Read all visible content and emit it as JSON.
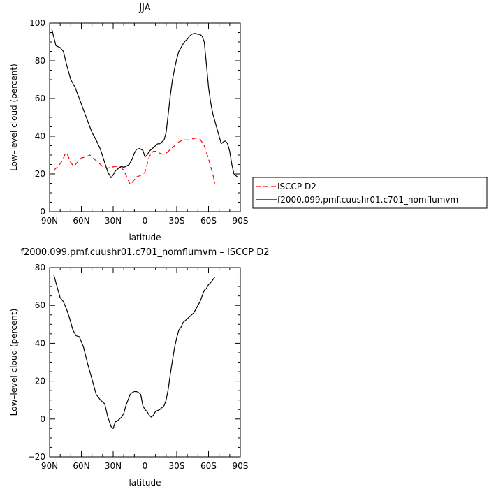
{
  "figure": {
    "legend_entries": [
      "ISCCP D2",
      "f2000.099.pmf.cuushr01.c701_nomflumvm"
    ]
  },
  "chart_data": [
    {
      "type": "line",
      "title": "JJA",
      "xlabel": "latitude",
      "ylabel": "Low–level cloud (percent)",
      "xlim": [
        90,
        -90
      ],
      "ylim": [
        0,
        100
      ],
      "xticks": [
        90,
        60,
        30,
        0,
        -30,
        -60,
        -90
      ],
      "xtick_labels": [
        "90N",
        "60N",
        "30N",
        "0",
        "30S",
        "60S",
        "90S"
      ],
      "yticks": [
        0,
        20,
        40,
        60,
        80,
        100
      ],
      "ytick_labels": [
        "0",
        "20",
        "40",
        "60",
        "80",
        "100"
      ],
      "legend_position": "right",
      "series": [
        {
          "name": "ISCCP D2",
          "color": "#ff0000",
          "dash": true,
          "x": [
            86,
            82,
            78,
            75,
            73,
            70,
            67,
            64,
            60,
            56,
            52,
            48,
            44,
            40,
            36,
            32,
            28,
            24,
            20,
            16,
            14,
            12,
            10,
            8,
            5,
            2,
            0,
            -2,
            -4,
            -6,
            -8,
            -10,
            -12,
            -14,
            -16,
            -18,
            -20,
            -24,
            -28,
            -32,
            -36,
            -40,
            -44,
            -48,
            -52,
            -56,
            -60,
            -64,
            -66
          ],
          "y": [
            22,
            24,
            27,
            31,
            30,
            26,
            24,
            26,
            28.5,
            29,
            30,
            28,
            26,
            24,
            23,
            23.5,
            24,
            24,
            22,
            17,
            14.5,
            15.5,
            17,
            18.5,
            19,
            20,
            21,
            25,
            29,
            31,
            32,
            32,
            31.5,
            31,
            30.5,
            30.5,
            31,
            33,
            35,
            37,
            38,
            38,
            38.5,
            39,
            38.5,
            35,
            28,
            20,
            15
          ]
        },
        {
          "name": "f2000.099.pmf.cuushr01.c701_nomflumvm",
          "color": "#000000",
          "dash": false,
          "x": [
            88,
            84,
            80,
            77,
            74,
            70,
            66,
            62,
            58,
            54,
            50,
            46,
            42,
            38,
            35,
            32,
            30,
            28,
            26,
            24,
            22,
            20,
            18,
            15,
            12,
            10,
            8,
            5,
            2,
            0,
            -2,
            -4,
            -6,
            -8,
            -10,
            -12,
            -14,
            -16,
            -18,
            -20,
            -22,
            -24,
            -26,
            -28,
            -30,
            -32,
            -34,
            -36,
            -38,
            -40,
            -42,
            -44,
            -46,
            -48,
            -50,
            -52,
            -54,
            -56,
            -58,
            -60,
            -62,
            -64,
            -66,
            -68,
            -70,
            -72,
            -74,
            -76,
            -78,
            -80,
            -82,
            -84,
            -86,
            -88
          ],
          "y": [
            97,
            88,
            87,
            85,
            78,
            70,
            66,
            60,
            54,
            48,
            42,
            38,
            33,
            26,
            21,
            18,
            19.5,
            21.5,
            22.5,
            23.5,
            24,
            23.5,
            24,
            25,
            28,
            31,
            33,
            33.5,
            32.5,
            29,
            30,
            32,
            33,
            34,
            35,
            36,
            36,
            37,
            38,
            42,
            52,
            62,
            70,
            76,
            81,
            85,
            87,
            89,
            90.5,
            91.5,
            93,
            94,
            94.5,
            94.5,
            94,
            94,
            93,
            90,
            78,
            66,
            58,
            52,
            48,
            44,
            40,
            36,
            37,
            37.5,
            36,
            32,
            25,
            20,
            19,
            18
          ]
        }
      ]
    },
    {
      "type": "line",
      "title": "f2000.099.pmf.cuushr01.c701_nomflumvm – ISCCP D2",
      "xlabel": "latitude",
      "ylabel": "Low–level cloud (percent)",
      "xlim": [
        90,
        -90
      ],
      "ylim": [
        -20,
        80
      ],
      "xticks": [
        90,
        60,
        30,
        0,
        -30,
        -60,
        -90
      ],
      "xtick_labels": [
        "90N",
        "60N",
        "30N",
        "0",
        "30S",
        "60S",
        "90S"
      ],
      "yticks": [
        -20,
        0,
        20,
        40,
        60,
        80
      ],
      "ytick_labels": [
        "−20",
        "0",
        "20",
        "40",
        "60",
        "80"
      ],
      "series": [
        {
          "color": "#000000",
          "dash": false,
          "x": [
            86,
            83,
            80,
            77,
            74,
            71,
            68,
            65,
            62,
            58,
            54,
            50,
            46,
            42,
            38,
            35,
            32,
            30,
            28,
            26,
            24,
            22,
            20,
            18,
            16,
            14,
            12,
            10,
            8,
            6,
            4,
            2,
            0,
            -2,
            -4,
            -6,
            -8,
            -10,
            -12,
            -14,
            -16,
            -18,
            -20,
            -22,
            -24,
            -26,
            -28,
            -30,
            -32,
            -34,
            -36,
            -38,
            -40,
            -42,
            -44,
            -46,
            -48,
            -50,
            -52,
            -54,
            -56,
            -58,
            -60,
            -62,
            -64,
            -66
          ],
          "y": [
            76,
            70,
            64,
            62,
            58,
            53,
            47,
            44,
            43.5,
            38,
            29,
            21,
            13,
            10,
            8,
            1,
            -4,
            -5,
            -1.5,
            -1,
            0,
            1,
            3,
            7,
            10,
            13,
            14,
            14.5,
            14.5,
            14,
            13,
            7,
            5,
            4,
            2,
            1,
            2,
            4,
            4.5,
            5,
            6,
            7,
            10,
            16,
            24,
            31,
            38,
            43,
            47,
            48.5,
            51,
            52,
            53,
            54,
            55,
            56,
            58,
            60,
            62,
            65,
            68,
            69,
            71,
            72,
            73.5,
            75
          ]
        }
      ]
    }
  ]
}
